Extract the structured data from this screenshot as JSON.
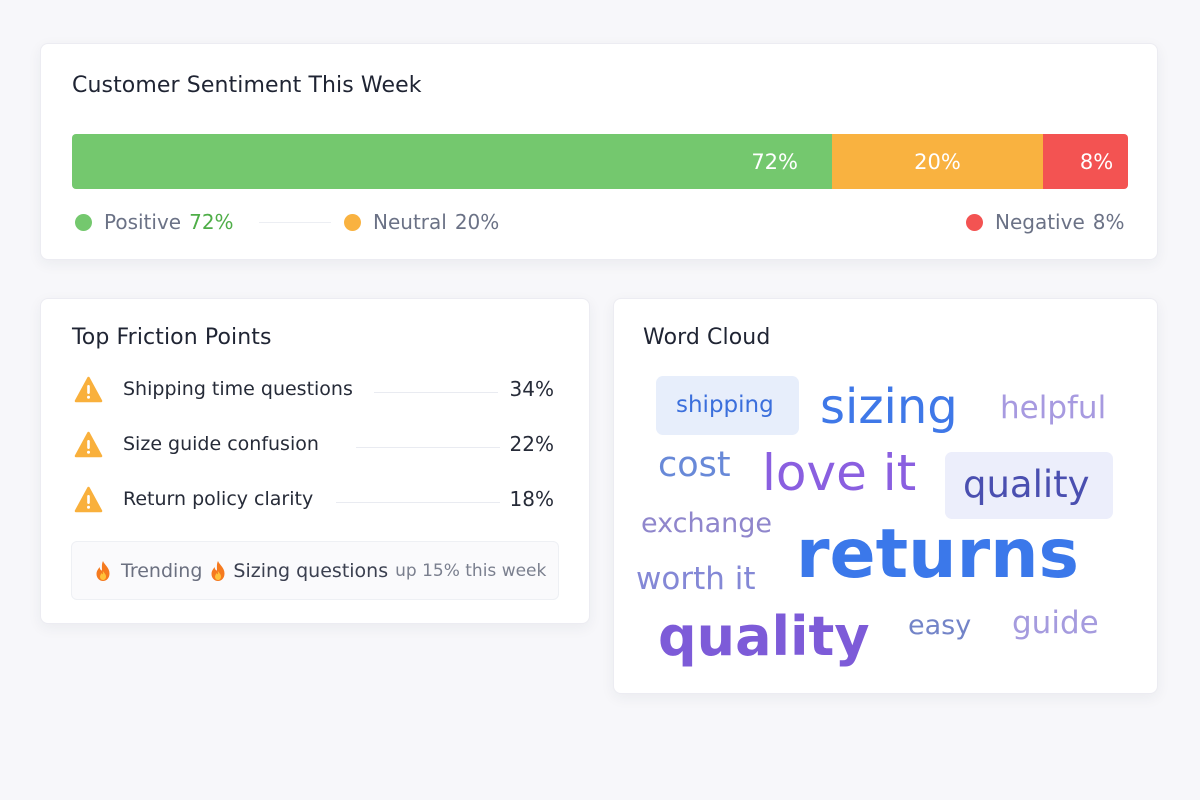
{
  "sentiment": {
    "title": "Customer Sentiment This Week",
    "segments": [
      {
        "key": "positive",
        "label": "Positive",
        "percent": 72,
        "bar_text": "72%",
        "legend_value": "72%",
        "color": "#74c86e",
        "value_color": "#4fae48"
      },
      {
        "key": "neutral",
        "label": "Neutral",
        "percent": 20,
        "bar_text": "20%",
        "legend_value": "20%",
        "color": "#f9b240",
        "value_color": "#6b7286"
      },
      {
        "key": "negative",
        "label": "Negative",
        "percent": 8,
        "bar_text": "8%",
        "legend_value": "8%",
        "color": "#f35352",
        "value_color": "#6b7286"
      }
    ]
  },
  "friction": {
    "title": "Top Friction Points",
    "icon": "warning-icon",
    "items": [
      {
        "label": "Shipping time questions",
        "value": "34%"
      },
      {
        "label": "Size guide confusion",
        "value": "22%"
      },
      {
        "label": "Return policy clarity",
        "value": "18%"
      }
    ],
    "trending": {
      "icon": "fire-icon",
      "label": "Trending",
      "topic": "Sizing questions",
      "note": "up 15% this week"
    }
  },
  "word_cloud": {
    "title": "Word Cloud",
    "words": [
      {
        "text": "shipping",
        "color": "#3b6fdc",
        "highlight": true
      },
      {
        "text": "sizing",
        "color": "#3f78e8",
        "highlight": false
      },
      {
        "text": "helpful",
        "color": "#a79ae0",
        "highlight": false
      },
      {
        "text": "cost",
        "color": "#6889d8",
        "highlight": false
      },
      {
        "text": "love it",
        "color": "#8a5fe0",
        "highlight": false
      },
      {
        "text": "quality",
        "color": "#4a4fb0",
        "highlight": true
      },
      {
        "text": "exchange",
        "color": "#8f86cc",
        "highlight": false
      },
      {
        "text": "returns",
        "color": "#3b78ea",
        "highlight": false
      },
      {
        "text": "worth it",
        "color": "#8488d6",
        "highlight": false
      },
      {
        "text": "quality",
        "color": "#7d5bd8",
        "highlight": false
      },
      {
        "text": "easy",
        "color": "#7384c8",
        "highlight": false
      },
      {
        "text": "guide",
        "color": "#a59bde",
        "highlight": false
      }
    ]
  }
}
